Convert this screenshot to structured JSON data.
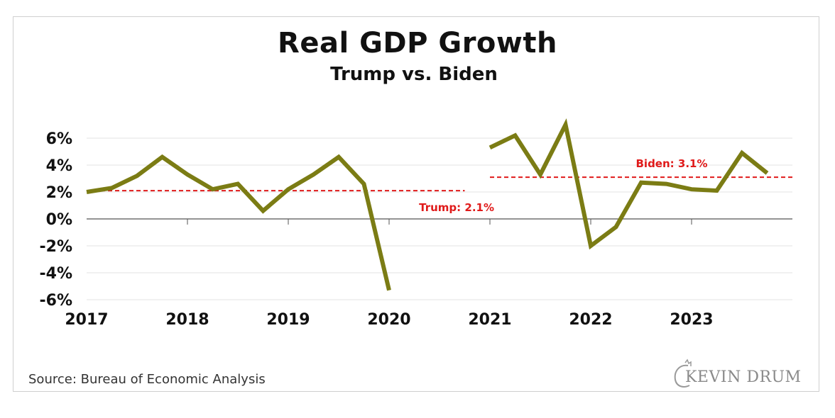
{
  "chart_data": {
    "type": "line",
    "title": "Real GDP Growth",
    "subtitle": "Trump vs. Biden",
    "xlabel": "",
    "ylabel": "",
    "ylim": [
      -6,
      6
    ],
    "xlim": [
      2017.0,
      2024.0
    ],
    "y_ticks": [
      "6%",
      "4%",
      "2%",
      "0%",
      "-2%",
      "-4%",
      "-6%"
    ],
    "y_tick_values": [
      6,
      4,
      2,
      0,
      -2,
      -4,
      -6
    ],
    "x_ticks": [
      "2017",
      "2018",
      "2019",
      "2020",
      "2021",
      "2022",
      "2023"
    ],
    "x_tick_values": [
      2017,
      2018,
      2019,
      2020,
      2021,
      2022,
      2023
    ],
    "grid": true,
    "series": [
      {
        "name": "Trump",
        "color": "#7b7c14",
        "x": [
          2017.0,
          2017.25,
          2017.5,
          2017.75,
          2018.0,
          2018.25,
          2018.5,
          2018.75,
          2019.0,
          2019.25,
          2019.5,
          2019.75,
          2020.0
        ],
        "values": [
          2.0,
          2.3,
          3.2,
          4.6,
          3.3,
          2.2,
          2.6,
          0.6,
          2.2,
          3.3,
          4.6,
          2.6,
          -5.3
        ]
      },
      {
        "name": "Biden",
        "color": "#7b7c14",
        "x": [
          2021.0,
          2021.25,
          2021.5,
          2021.75,
          2022.0,
          2022.25,
          2022.5,
          2022.75,
          2023.0,
          2023.25,
          2023.5,
          2023.75
        ],
        "values": [
          5.3,
          6.2,
          3.3,
          7.0,
          -2.0,
          -0.6,
          2.7,
          2.6,
          2.2,
          2.1,
          4.9,
          3.4
        ]
      }
    ],
    "averages": [
      {
        "name": "Trump",
        "value": 2.1,
        "label": "Trump: 2.1%",
        "x_start": 2017.0,
        "x_end": 2020.75,
        "color": "#e01a1a"
      },
      {
        "name": "Biden",
        "value": 3.1,
        "label": "Biden: 3.1%",
        "x_start": 2021.0,
        "x_end": 2024.0,
        "color": "#e01a1a"
      }
    ]
  },
  "footer": {
    "source": "Source: Bureau of Economic Analysis",
    "logo_text": "KEVIN DRUM"
  }
}
